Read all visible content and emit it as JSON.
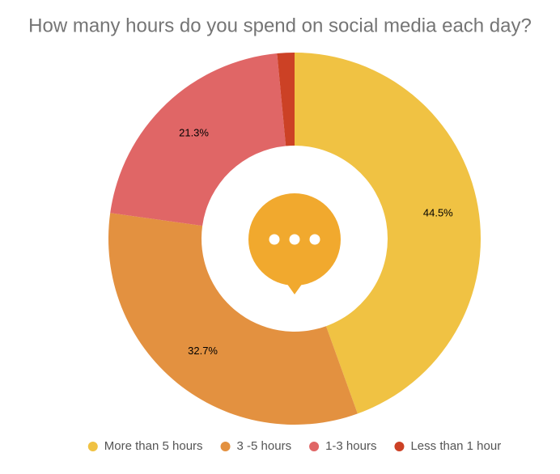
{
  "chart_data": {
    "type": "donut",
    "title": "How many hours do you spend on social media each day?",
    "categories": [
      "More than 5 hours",
      "3 -5 hours",
      "1-3 hours",
      "Less than 1 hour"
    ],
    "values": [
      44.5,
      32.7,
      21.3,
      1.5
    ],
    "value_labels": [
      "44.5%",
      "32.7%",
      "21.3%",
      null
    ],
    "colors": [
      "#f0c243",
      "#e39140",
      "#e06666",
      "#cc4125"
    ],
    "legend": "bottom"
  }
}
